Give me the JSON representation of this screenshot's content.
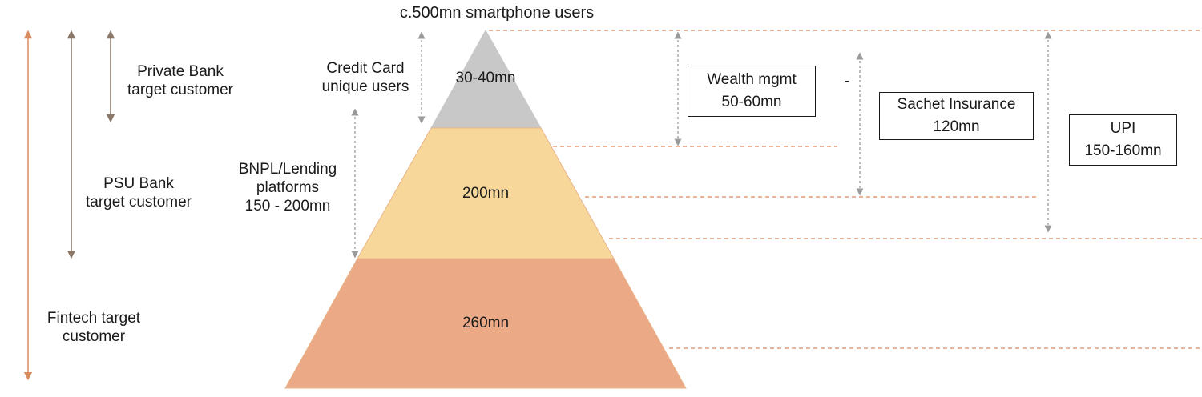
{
  "title": "c.500mn smartphone users",
  "pyramid": {
    "tiers": [
      {
        "label": "30-40mn",
        "color": "#c8c8c8"
      },
      {
        "label": "200mn",
        "color": "#f7d89a"
      },
      {
        "label": "260mn",
        "color": "#eba986"
      }
    ],
    "edge_color": "#e8b48a"
  },
  "left_labels": {
    "private_bank": [
      "Private Bank",
      "target customer"
    ],
    "psu_bank": [
      "PSU Bank",
      "target customer"
    ],
    "fintech": [
      "Fintech target",
      "customer"
    ]
  },
  "side_labels": {
    "credit_card": [
      "Credit Card",
      "unique users"
    ],
    "bnpl": [
      "BNPL/Lending",
      "platforms",
      "150 - 200mn"
    ]
  },
  "boxes": {
    "wealth": [
      "Wealth mgmt",
      "50-60mn"
    ],
    "sachet": [
      "Sachet Insurance",
      "120mn"
    ],
    "upi": [
      "UPI",
      "150-160mn"
    ]
  },
  "dash_mark": "-",
  "colors": {
    "arrow_brown": "#8a7768",
    "arrow_orange": "#d98c5f",
    "arrow_gray": "#8c8c8c",
    "dashed": "#d98c5f"
  }
}
